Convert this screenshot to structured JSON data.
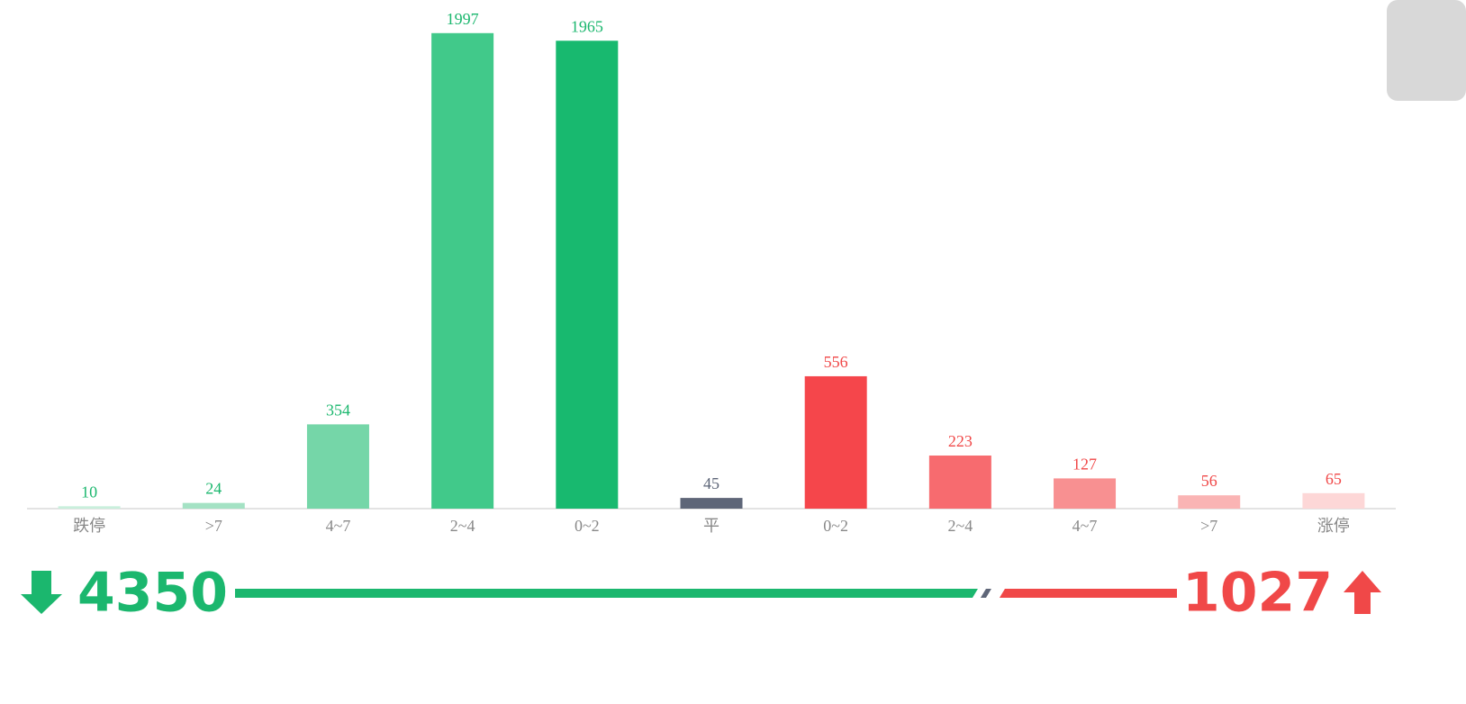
{
  "chart_data": {
    "type": "bar",
    "categories": [
      "跌停",
      ">7",
      "4~7",
      "2~4",
      "0~2",
      "平",
      "0~2",
      "2~4",
      "4~7",
      ">7",
      "涨停"
    ],
    "values": [
      10,
      24,
      354,
      1997,
      1965,
      45,
      556,
      223,
      127,
      56,
      65
    ],
    "colors": [
      "#c9efdc",
      "#a4e2c4",
      "#75d6a8",
      "#41c98a",
      "#18b96f",
      "#5e6678",
      "#f5464b",
      "#f76b6f",
      "#f89091",
      "#fab4b4",
      "#fdd7d7"
    ],
    "value_label_colors": [
      "#1bb76e",
      "#1bb76e",
      "#1bb76e",
      "#1bb76e",
      "#1bb76e",
      "#5e6678",
      "#f04848",
      "#f04848",
      "#f04848",
      "#f04848",
      "#f04848"
    ],
    "ylim": [
      0,
      2000
    ]
  },
  "summary": {
    "down": {
      "value": 4350,
      "color": "#1bb76e"
    },
    "up": {
      "value": 1027,
      "color": "#f04848"
    }
  }
}
